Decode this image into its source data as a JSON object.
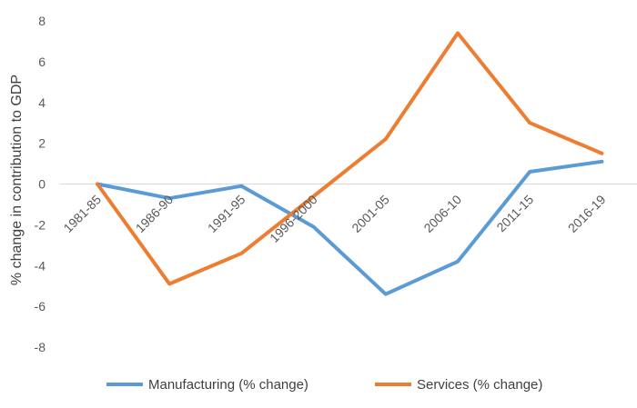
{
  "chart_data": {
    "type": "line",
    "categories": [
      "1981-85",
      "1986-90",
      "1991-95",
      "1996-2000",
      "2001-05",
      "2006-10",
      "2011-15",
      "2016-19"
    ],
    "series": [
      {
        "name": "Manufacturing (% change)",
        "color": "#5B9BD5",
        "values": [
          0.0,
          -0.7,
          -0.1,
          -2.1,
          -5.4,
          -3.8,
          0.6,
          1.1
        ]
      },
      {
        "name": "Services (% change)",
        "color": "#ED7D31",
        "values": [
          0.0,
          -4.9,
          -3.4,
          -0.6,
          2.2,
          7.4,
          3.0,
          1.5
        ]
      }
    ],
    "xlabel": "",
    "ylabel": "% change in contribution to GDP",
    "ylim": [
      -8,
      8
    ],
    "yticks": [
      -8,
      -6,
      -4,
      -2,
      0,
      2,
      4,
      6,
      8
    ],
    "grid": false,
    "legend": "bottom"
  }
}
